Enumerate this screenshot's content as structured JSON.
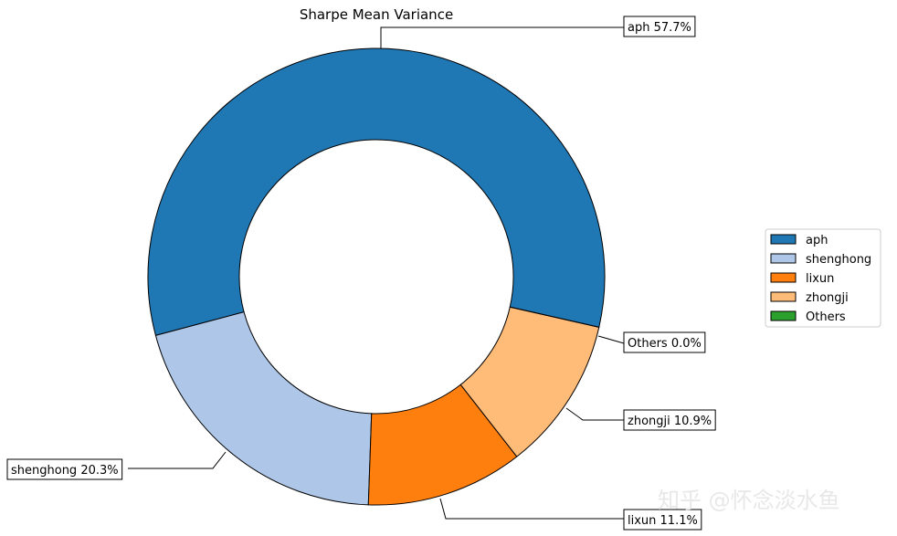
{
  "chart_data": {
    "type": "pie",
    "title": "Sharpe Mean Variance",
    "donut": true,
    "slices": [
      {
        "label": "aph",
        "value": 57.7,
        "display": "aph 57.7%",
        "color": "#1f77b4"
      },
      {
        "label": "shenghong",
        "value": 20.3,
        "display": "shenghong 20.3%",
        "color": "#aec7e8"
      },
      {
        "label": "lixun",
        "value": 11.1,
        "display": "lixun 11.1%",
        "color": "#ff7f0e"
      },
      {
        "label": "zhongji",
        "value": 10.9,
        "display": "zhongji 10.9%",
        "color": "#ffbb78"
      },
      {
        "label": "Others",
        "value": 0.0,
        "display": "Others 0.0%",
        "color": "#2ca02c"
      }
    ],
    "legend": {
      "placement": "right",
      "entries": [
        "aph",
        "shenghong",
        "lixun",
        "zhongji",
        "Others"
      ]
    }
  },
  "watermark": "知乎 @怀念淡水鱼"
}
